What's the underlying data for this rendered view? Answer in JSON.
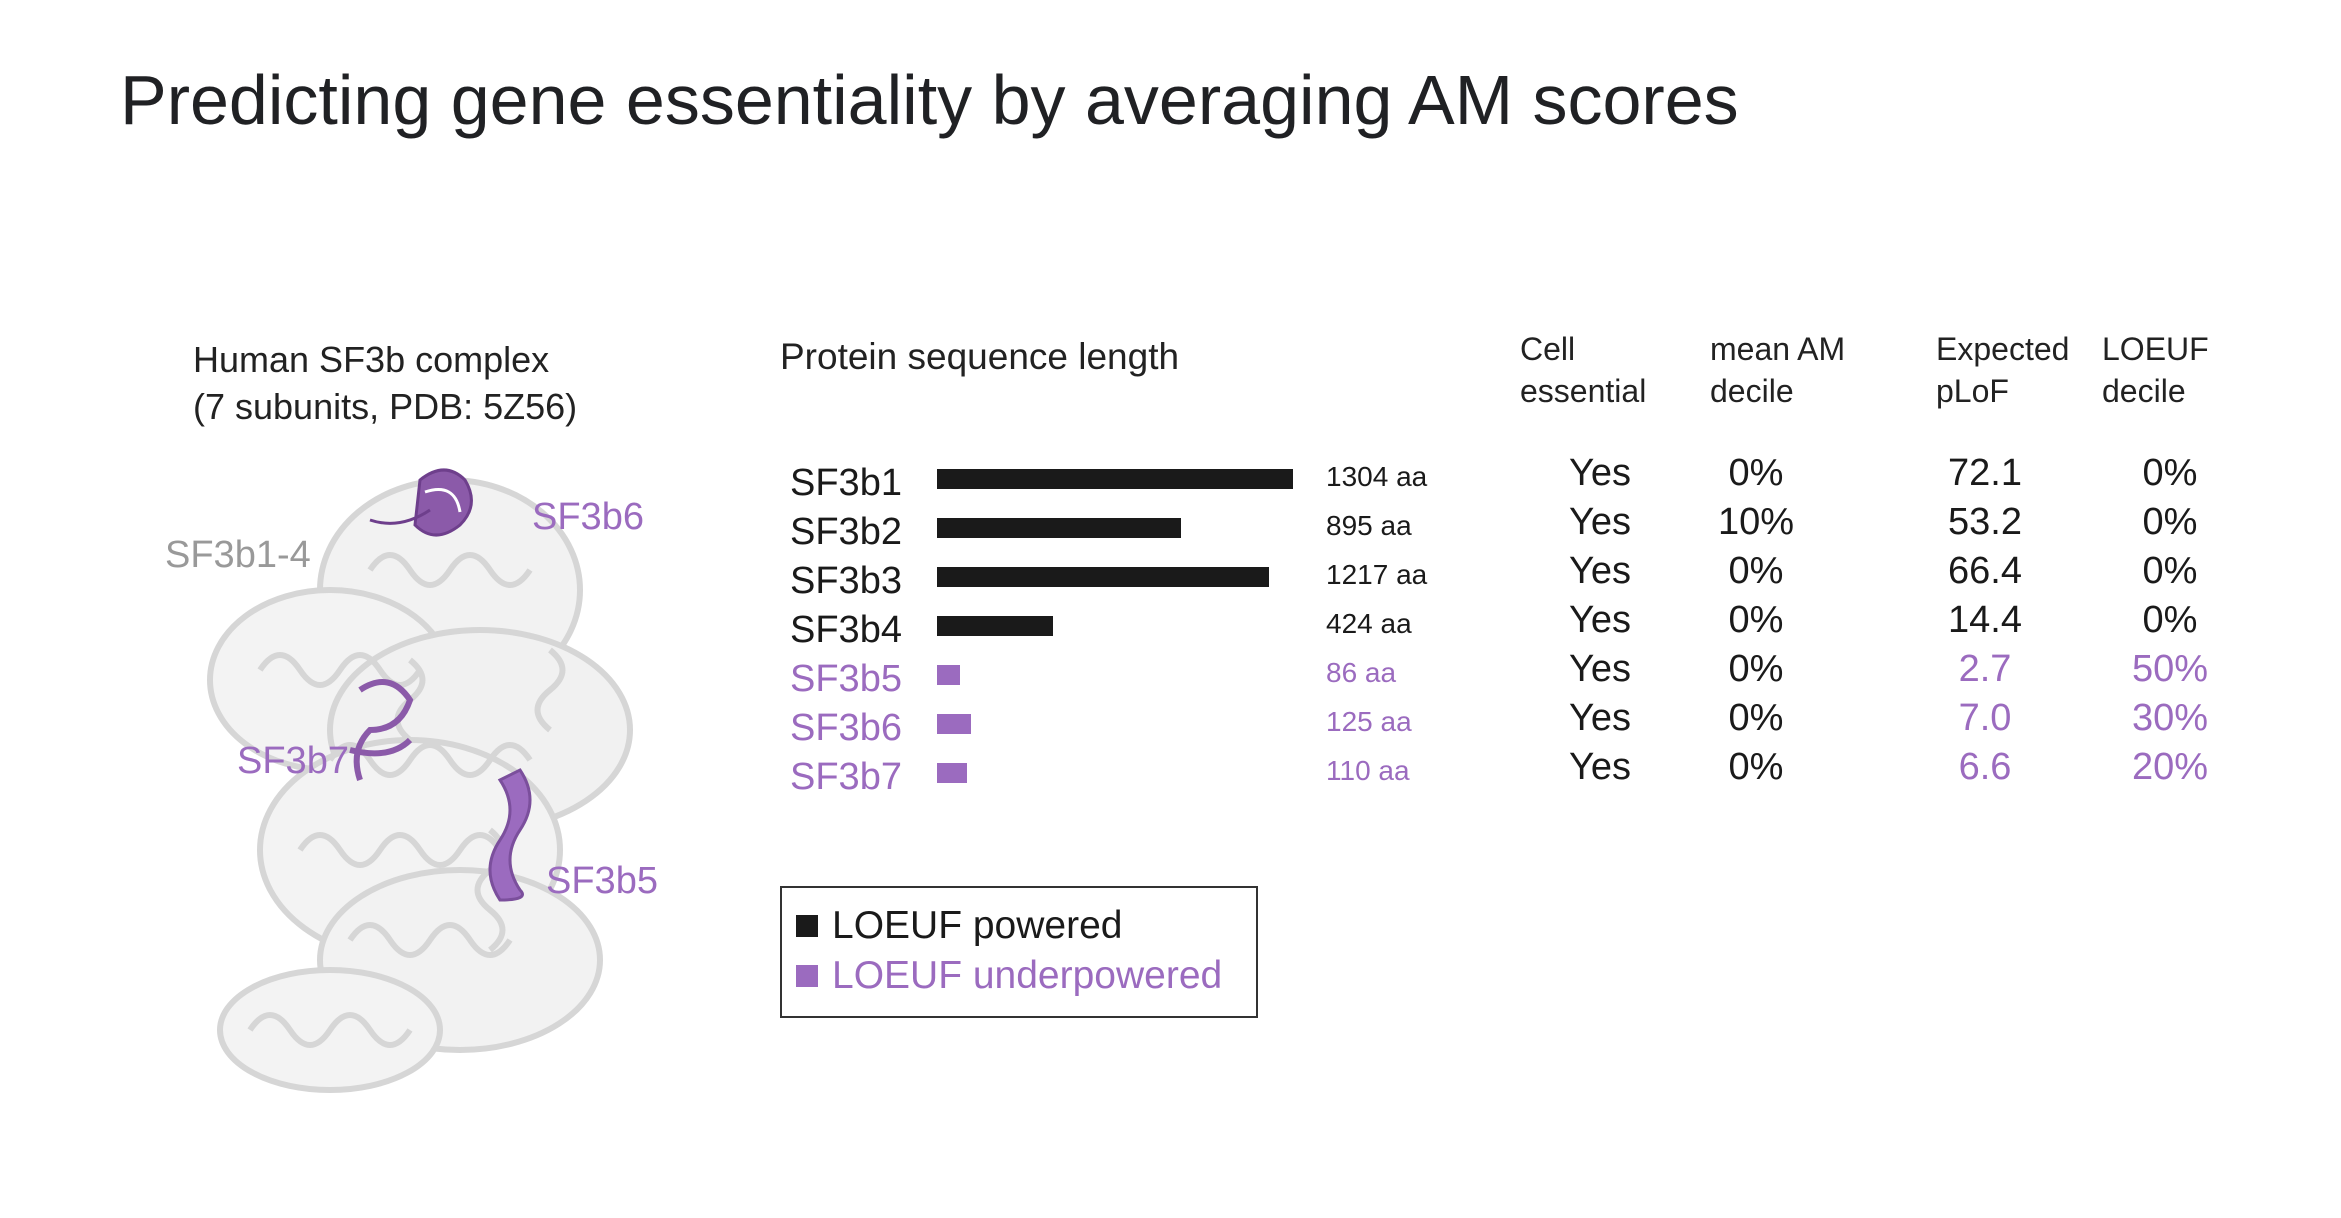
{
  "title": "Predicting gene essentiality by averaging AM scores",
  "colors": {
    "powered": "#1a1a1a",
    "underpowered": "#9b6bbf",
    "structure": "#d8d8d8"
  },
  "structure": {
    "caption_line1": "Human SF3b complex",
    "caption_line2": "(7 subunits, PDB: 5Z56)",
    "labels": {
      "sf3b1_4": "SF3b1-4",
      "sf3b6": "SF3b6",
      "sf3b7": "SF3b7",
      "sf3b5": "SF3b5"
    }
  },
  "length_header": "Protein sequence length",
  "columns": {
    "cell_essential": [
      "Cell",
      "essential"
    ],
    "mean_am": [
      "mean AM",
      "decile"
    ],
    "expected_plof": [
      "Expected",
      "pLoF"
    ],
    "loeuf": [
      "LOEUF",
      "decile"
    ]
  },
  "rows": [
    {
      "name": "SF3b1",
      "length": 1304,
      "aa_label": "1304 aa",
      "essential": "Yes",
      "mean_am": "0%",
      "plof": "72.1",
      "loeuf": "0%",
      "group": "powered"
    },
    {
      "name": "SF3b2",
      "length": 895,
      "aa_label": "895 aa",
      "essential": "Yes",
      "mean_am": "10%",
      "plof": "53.2",
      "loeuf": "0%",
      "group": "powered"
    },
    {
      "name": "SF3b3",
      "length": 1217,
      "aa_label": "1217 aa",
      "essential": "Yes",
      "mean_am": "0%",
      "plof": "66.4",
      "loeuf": "0%",
      "group": "powered"
    },
    {
      "name": "SF3b4",
      "length": 424,
      "aa_label": "424 aa",
      "essential": "Yes",
      "mean_am": "0%",
      "plof": "14.4",
      "loeuf": "0%",
      "group": "powered"
    },
    {
      "name": "SF3b5",
      "length": 86,
      "aa_label": "86 aa",
      "essential": "Yes",
      "mean_am": "0%",
      "plof": "2.7",
      "loeuf": "50%",
      "group": "underpowered"
    },
    {
      "name": "SF3b6",
      "length": 125,
      "aa_label": "125 aa",
      "essential": "Yes",
      "mean_am": "0%",
      "plof": "7.0",
      "loeuf": "30%",
      "group": "underpowered"
    },
    {
      "name": "SF3b7",
      "length": 110,
      "aa_label": "110 aa",
      "essential": "Yes",
      "mean_am": "0%",
      "plof": "6.6",
      "loeuf": "20%",
      "group": "underpowered"
    }
  ],
  "legend": {
    "powered": "LOEUF powered",
    "underpowered": "LOEUF underpowered"
  }
}
